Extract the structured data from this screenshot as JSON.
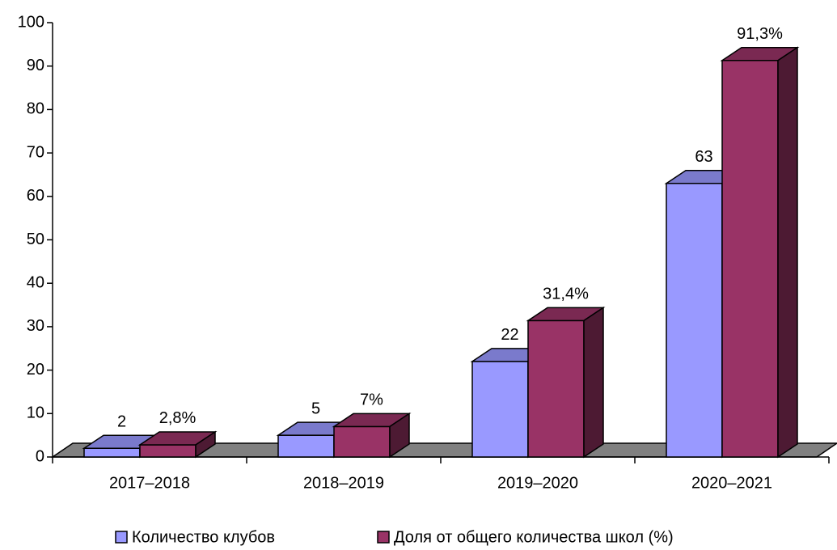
{
  "chart_data": {
    "type": "bar3d",
    "categories": [
      "2017–2018",
      "2018–2019",
      "2019–2020",
      "2020–2021"
    ],
    "series": [
      {
        "name": "Количество клубов",
        "color": "#9999ff",
        "values": [
          2,
          5,
          22,
          63
        ]
      },
      {
        "name": "Доля от общего количества школ (%)",
        "color": "#993366",
        "values": [
          2.8,
          7,
          31.4,
          91.3
        ],
        "value_labels": [
          "2,8%",
          "7%",
          "31,4%",
          "91,3%"
        ]
      }
    ],
    "ylim": [
      0,
      100
    ],
    "yticks": [
      0,
      10,
      20,
      30,
      40,
      50,
      60,
      70,
      80,
      90,
      100
    ],
    "legend": "bottom"
  }
}
